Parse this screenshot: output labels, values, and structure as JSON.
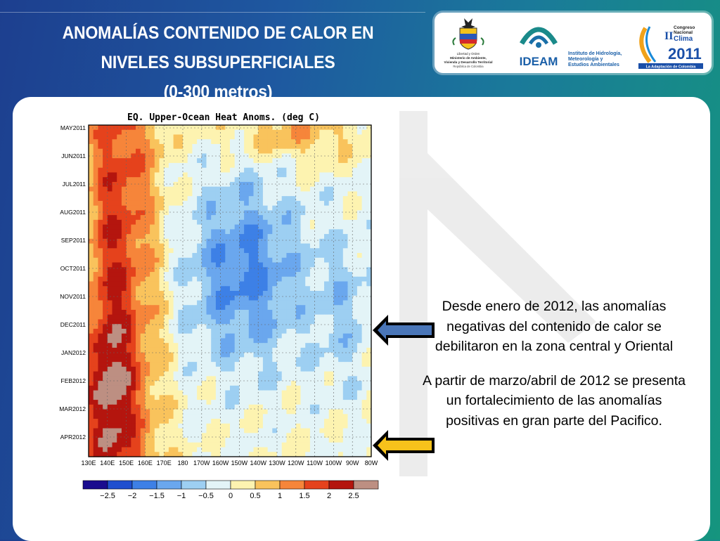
{
  "title": {
    "line1": "ANOMALÍAS CONTENIDO DE CALOR EN",
    "line2": "NIVELES SUBSUPERFICIALES",
    "line3": "(0-300 metros)"
  },
  "logos": {
    "ministerio": {
      "lines": [
        "Libertad y Orden",
        "Ministerio de Ambiente,",
        "Vivienda y Desarrollo Territorial",
        "República de Colombia"
      ]
    },
    "ideam": {
      "name": "IDEAM",
      "lines": [
        "Instituto de Hidrología,",
        "Meteorología y",
        "Estudios Ambientales"
      ]
    },
    "congreso": {
      "lines": [
        "II",
        "Congreso",
        "Nacional",
        "Clima",
        "2011",
        "La Adaptación de Colombia"
      ]
    }
  },
  "chart_data": {
    "type": "heatmap",
    "title": "EQ. Upper-Ocean Heat Anoms. (deg C)",
    "y_labels": [
      "MAY2011",
      "JUN2011",
      "JUL2011",
      "AUG2011",
      "SEP2011",
      "OCT2011",
      "NOV2011",
      "DEC2011",
      "JAN2012",
      "FEB2012",
      "MAR2012",
      "APR2012"
    ],
    "x_labels": [
      "130E",
      "140E",
      "150E",
      "160E",
      "170E",
      "180",
      "170W",
      "160W",
      "150W",
      "140W",
      "130W",
      "120W",
      "110W",
      "100W",
      "90W",
      "80W"
    ],
    "colorbar_labels": [
      "−2.5",
      "−2",
      "−1.5",
      "−1",
      "−0.5",
      "0",
      "0.5",
      "1",
      "1.5",
      "2",
      "2.5"
    ],
    "colorbar_colors": [
      "#1a0c8e",
      "#1f4fcf",
      "#3d80e6",
      "#6aa7ee",
      "#9dcff2",
      "#e3f4f7",
      "#fdf3b0",
      "#f9c35c",
      "#f6853a",
      "#e5421c",
      "#b4150e",
      "#bd8f82"
    ]
  },
  "body": {
    "paragraph1": "Desde enero  de 2012, las anomalías negativas del contenido de calor  se debilitaron en la zona central y Oriental",
    "paragraph2": "A partir de  marzo/abril de 2012 se presenta un fortalecimiento de las anomalías positivas en gran parte del Pacifico."
  },
  "arrows": {
    "first_color": "#4a76b8",
    "second_color": "#f7c21b"
  }
}
